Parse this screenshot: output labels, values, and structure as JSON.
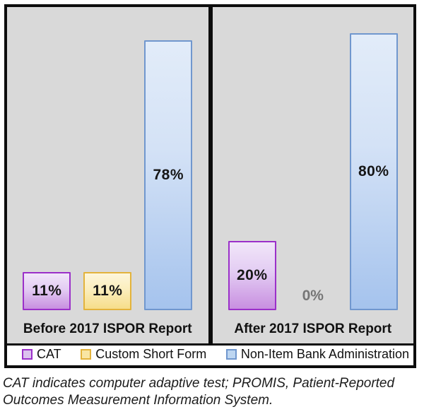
{
  "chart_data": {
    "type": "bar",
    "title": "",
    "groups": [
      "Before 2017 ISPOR Report",
      "After 2017 ISPOR Report"
    ],
    "categories": [
      "CAT",
      "Custom Short Form",
      "Non-Item Bank Administration"
    ],
    "series": [
      {
        "name": "CAT",
        "values": [
          11,
          20
        ]
      },
      {
        "name": "Custom Short Form",
        "values": [
          11,
          0
        ]
      },
      {
        "name": "Non-Item Bank Administration",
        "values": [
          78,
          80
        ]
      }
    ],
    "unit": "percent",
    "ylim": [
      0,
      88
    ],
    "grid": false,
    "data_labels": true,
    "legend_position": "bottom"
  },
  "panels": [
    {
      "title": "Before 2017 ISPOR Report",
      "bars": [
        {
          "series": "CAT",
          "value": 11,
          "label": "11%"
        },
        {
          "series": "Custom Short Form",
          "value": 11,
          "label": "11%"
        },
        {
          "series": "Non-Item Bank Administration",
          "value": 78,
          "label": "78%"
        }
      ]
    },
    {
      "title": "After 2017 ISPOR Report",
      "bars": [
        {
          "series": "CAT",
          "value": 20,
          "label": "20%"
        },
        {
          "series": "Custom Short Form",
          "value": 0,
          "label": "0%"
        },
        {
          "series": "Non-Item Bank Administration",
          "value": 80,
          "label": "80%"
        }
      ]
    }
  ],
  "legend": {
    "items": [
      {
        "label": "CAT",
        "swatch": "purple"
      },
      {
        "label": "Custom Short Form",
        "swatch": "yellow"
      },
      {
        "label": "Non-Item Bank Administration",
        "swatch": "blue"
      }
    ]
  },
  "footnote": {
    "line1": "CAT indicates computer adaptive test; PROMIS, Patient-Reported",
    "line2": "Outcomes Measurement Information System."
  },
  "colors": {
    "panel_background": "#d9d9d9",
    "border_black": "#0d0d0d",
    "purple_border": "#9b30c9",
    "purple_fill_top": "#f1e6f9",
    "purple_fill_bottom": "#c88fe0",
    "yellow_border": "#e3b33c",
    "yellow_fill_top": "#fdf6dc",
    "yellow_fill_bottom": "#f6dd8a",
    "blue_border": "#7097ce",
    "blue_fill_top": "#e2ecf9",
    "blue_fill_bottom": "#a5c3ed",
    "zero_label_gray": "#767676"
  }
}
